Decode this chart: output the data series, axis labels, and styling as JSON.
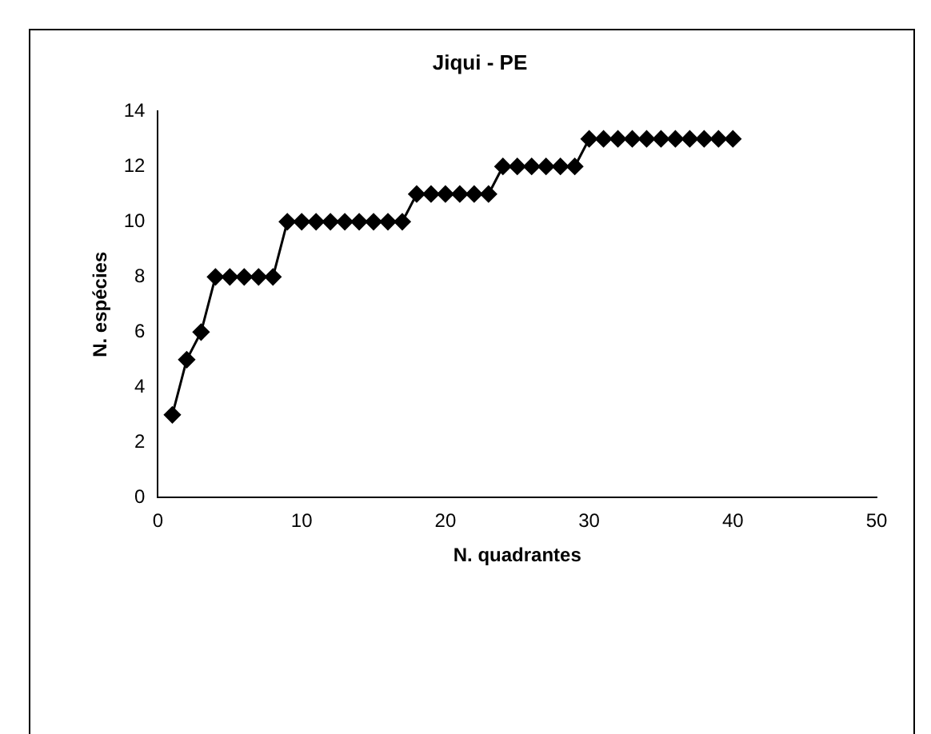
{
  "chart_data": {
    "type": "line",
    "title": "Jiqui - PE",
    "xlabel": "N. quadrantes",
    "ylabel": "N. espécies",
    "x": [
      1,
      2,
      3,
      4,
      5,
      6,
      7,
      8,
      9,
      10,
      11,
      12,
      13,
      14,
      15,
      16,
      17,
      18,
      19,
      20,
      21,
      22,
      23,
      24,
      25,
      26,
      27,
      28,
      29,
      30,
      31,
      32,
      33,
      34,
      35,
      36,
      37,
      38,
      39,
      40
    ],
    "series": [
      {
        "color": "#000000",
        "values": [
          3,
          5,
          6,
          8,
          8,
          8,
          8,
          8,
          10,
          10,
          10,
          10,
          10,
          10,
          10,
          10,
          10,
          11,
          11,
          11,
          11,
          11,
          11,
          12,
          12,
          12,
          12,
          12,
          12,
          13,
          13,
          13,
          13,
          13,
          13,
          13,
          13,
          13,
          13,
          13
        ]
      }
    ],
    "xlim": [
      0,
      50
    ],
    "xticks": [
      0,
      10,
      20,
      30,
      40,
      50
    ],
    "ylim": [
      0,
      14
    ],
    "yticks": [
      0,
      2,
      4,
      6,
      8,
      10,
      12,
      14
    ],
    "grid": false,
    "legend": false,
    "marker": "diamond",
    "line_style": "solid"
  }
}
